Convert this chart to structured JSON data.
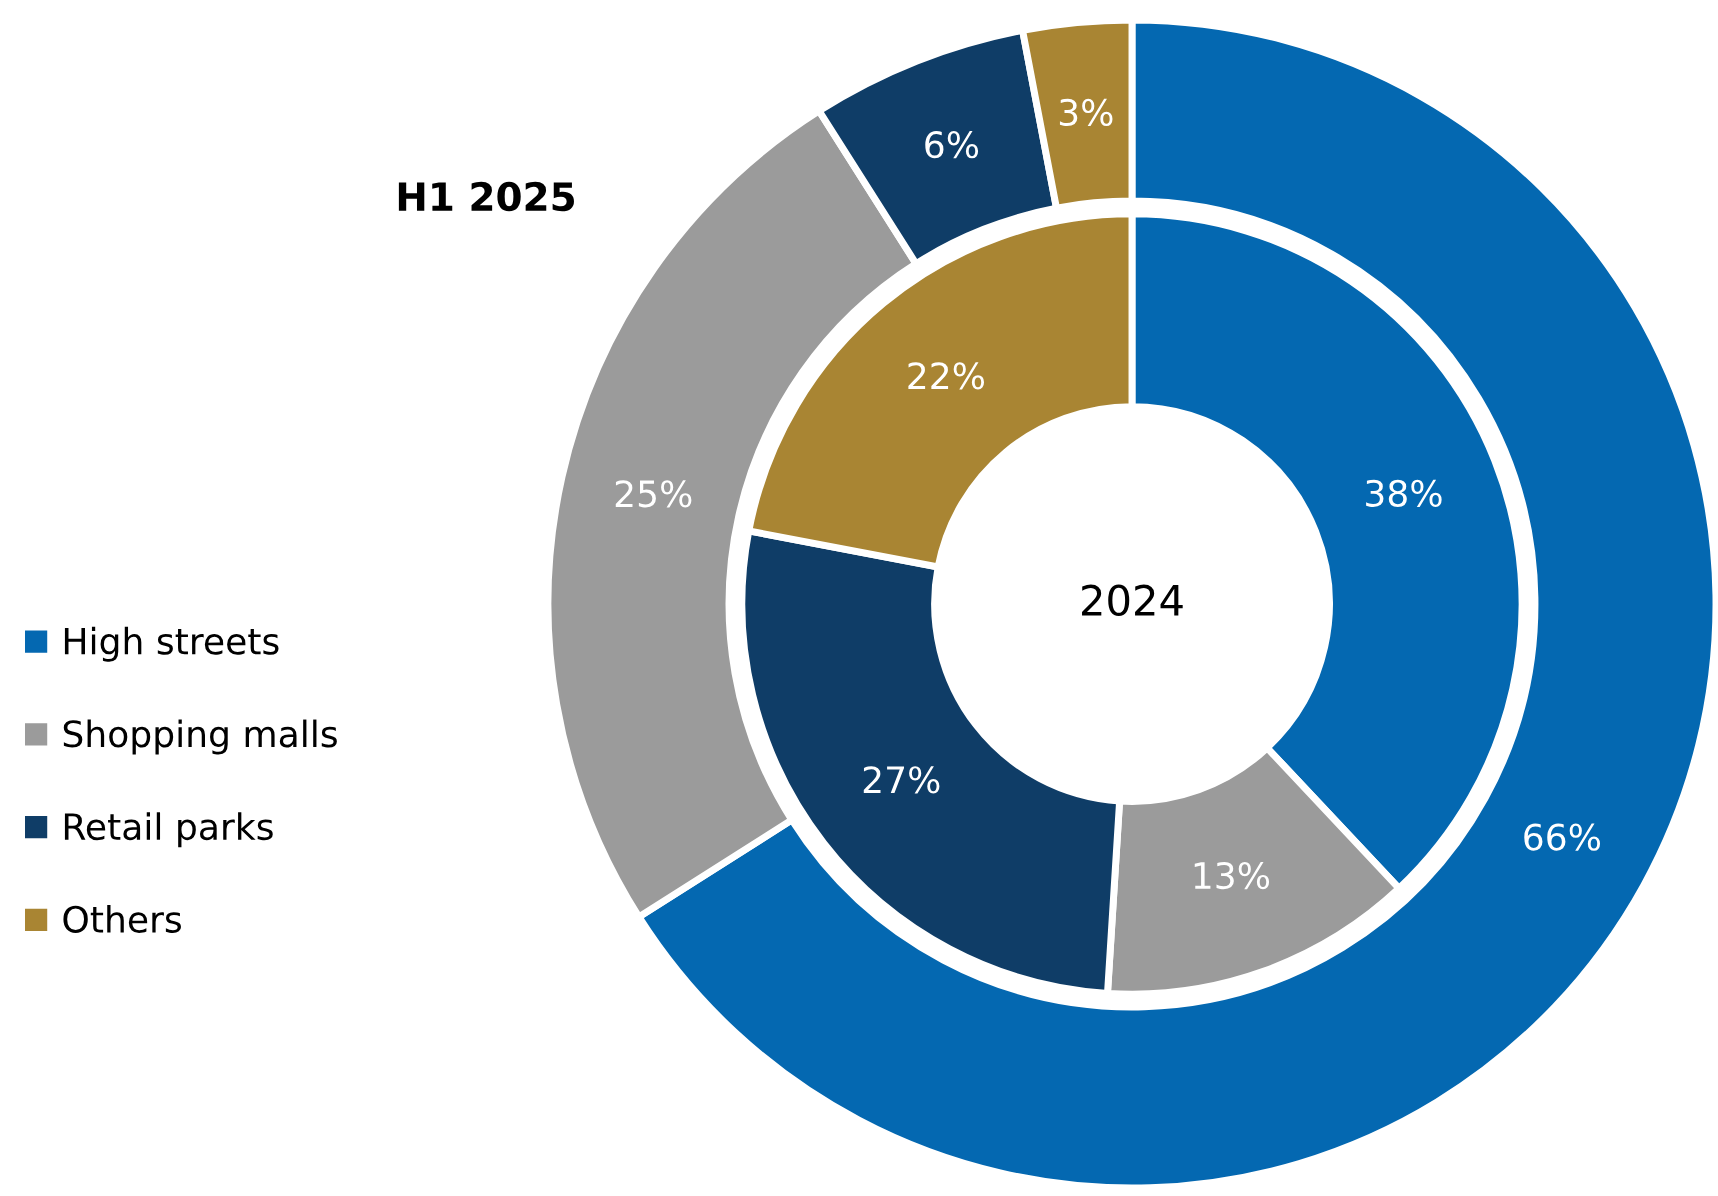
{
  "chart_data": {
    "type": "donut",
    "categories": [
      "High streets",
      "Shopping malls",
      "Retail parks",
      "Others"
    ],
    "colors": [
      "#0468b1",
      "#9b9b9b",
      "#0f3d67",
      "#a98533"
    ],
    "series": [
      {
        "name": "H1 2025",
        "values": [
          66,
          25,
          6,
          3
        ],
        "value_labels": [
          "66%",
          "25%",
          "6%",
          "3%"
        ]
      },
      {
        "name": "2024",
        "values": [
          38,
          13,
          27,
          22
        ],
        "value_labels": [
          "38%",
          "13%",
          "27%",
          "22%"
        ]
      }
    ],
    "legend": "left"
  }
}
